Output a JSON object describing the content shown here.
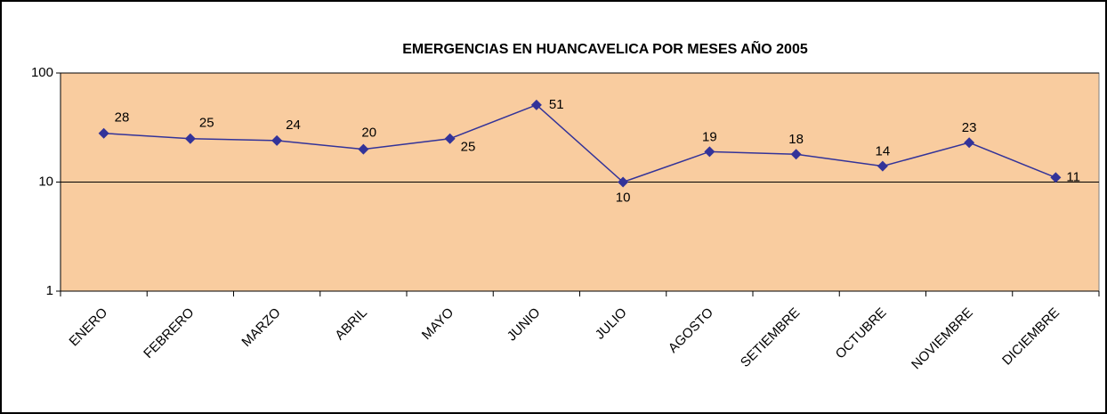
{
  "chart_data": {
    "type": "line",
    "title": "EMERGENCIAS EN HUANCAVELICA POR MESES AÑO 2005",
    "categories": [
      "ENERO",
      "FEBRERO",
      "MARZO",
      "ABRIL",
      "MAYO",
      "JUNIO",
      "JULIO",
      "AGOSTO",
      "SETIEMBRE",
      "OCTUBRE",
      "NOVIEMBRE",
      "DICIEMBRE"
    ],
    "values": [
      28,
      25,
      24,
      20,
      25,
      51,
      10,
      19,
      18,
      14,
      23,
      11
    ],
    "color": "#333399",
    "background": "#f9cc9f",
    "ylim": [
      1,
      100
    ],
    "yticks": [
      1,
      10,
      100
    ],
    "log_scale": true,
    "grid": true
  }
}
